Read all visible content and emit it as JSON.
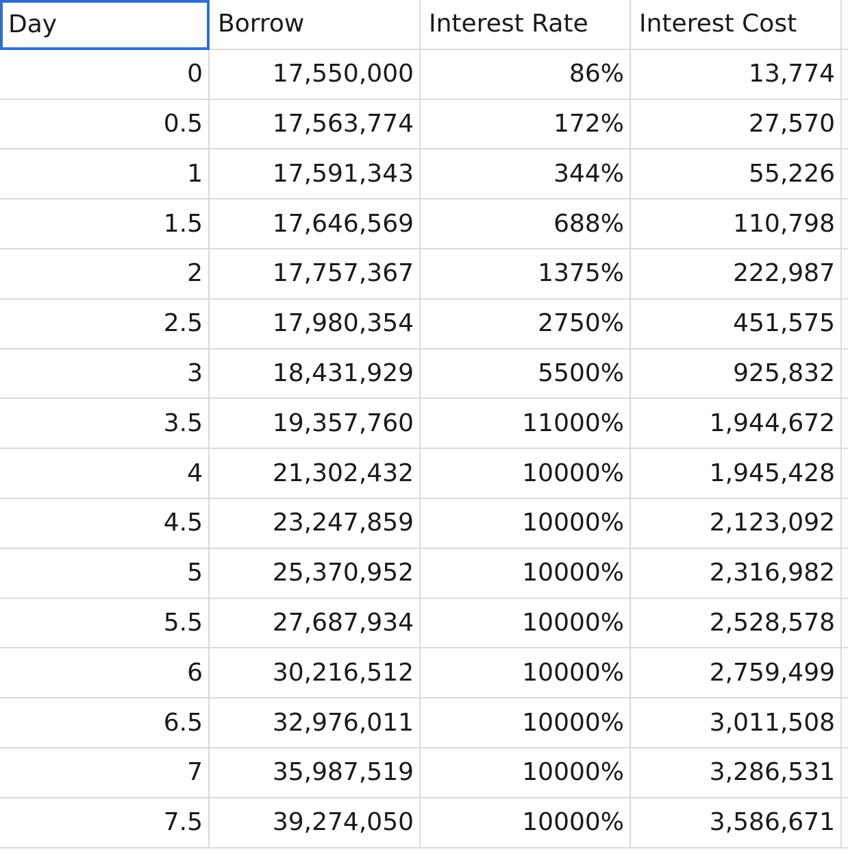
{
  "sheet": {
    "headers": [
      "Day",
      "Borrow",
      "Interest Rate",
      "Interest Cost"
    ],
    "selected_cell": "A1",
    "rows": [
      [
        "0",
        "17,550,000",
        "86%",
        "13,774"
      ],
      [
        "0.5",
        "17,563,774",
        "172%",
        "27,570"
      ],
      [
        "1",
        "17,591,343",
        "344%",
        "55,226"
      ],
      [
        "1.5",
        "17,646,569",
        "688%",
        "110,798"
      ],
      [
        "2",
        "17,757,367",
        "1375%",
        "222,987"
      ],
      [
        "2.5",
        "17,980,354",
        "2750%",
        "451,575"
      ],
      [
        "3",
        "18,431,929",
        "5500%",
        "925,832"
      ],
      [
        "3.5",
        "19,357,760",
        "11000%",
        "1,944,672"
      ],
      [
        "4",
        "21,302,432",
        "10000%",
        "1,945,428"
      ],
      [
        "4.5",
        "23,247,859",
        "10000%",
        "2,123,092"
      ],
      [
        "5",
        "25,370,952",
        "10000%",
        "2,316,982"
      ],
      [
        "5.5",
        "27,687,934",
        "10000%",
        "2,528,578"
      ],
      [
        "6",
        "30,216,512",
        "10000%",
        "2,759,499"
      ],
      [
        "6.5",
        "32,976,011",
        "10000%",
        "3,011,508"
      ],
      [
        "7",
        "35,987,519",
        "10000%",
        "3,286,531"
      ],
      [
        "7.5",
        "39,274,050",
        "10000%",
        "3,586,671"
      ]
    ]
  }
}
